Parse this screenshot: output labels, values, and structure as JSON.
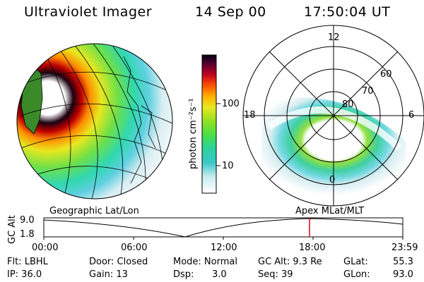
{
  "header": {
    "instrument": "Ultraviolet Imager",
    "date": "14 Sep 00",
    "time": "17:50:04 UT"
  },
  "colorbar": {
    "unit_label": "photon cm⁻²s⁻¹",
    "ticks": [
      "100",
      "10"
    ]
  },
  "left_panel": {
    "label": "Geographic Lat/Lon"
  },
  "right_panel": {
    "label": "Apex MLat/MLT",
    "mlt_labels": [
      "12",
      "18",
      "6",
      "0"
    ],
    "lat_labels": [
      "60",
      "70",
      "80"
    ]
  },
  "timeline": {
    "ylabel": "GC Alt",
    "yticks": [
      "9.0",
      "1.8"
    ],
    "xticks": [
      "00:00",
      "06:00",
      "12:00",
      "18:00",
      "23:59"
    ],
    "marker_time": "17:50",
    "marker_color": "#e0001a"
  },
  "footer": {
    "row1": [
      "Flt: LBHL",
      "Door: Closed",
      "Mode: Normal",
      "GC Alt: 9.3 Re",
      "GLat:",
      "55.3"
    ],
    "row2": [
      "IP: 36.0",
      "Gain: 13",
      "Dsp:",
      "3.0",
      "Seq: 39",
      "GLon:",
      "93.0"
    ]
  }
}
